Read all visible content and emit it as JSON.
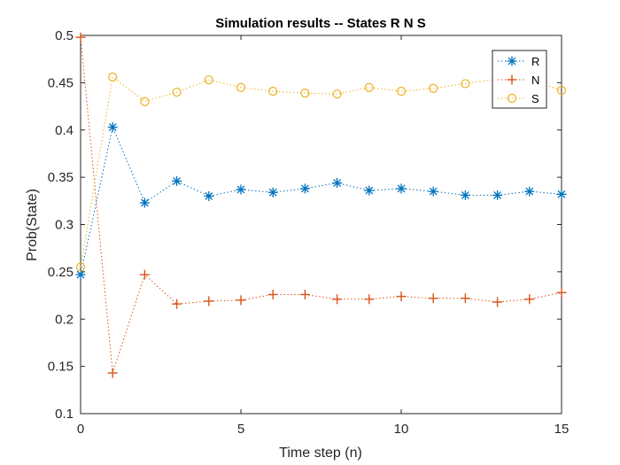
{
  "chart_data": {
    "type": "line",
    "title": "Simulation results -- States R N S",
    "xlabel": "Time step (n)",
    "ylabel": "Prob(State)",
    "xlim": [
      0,
      15
    ],
    "ylim": [
      0.1,
      0.5
    ],
    "xticks": [
      0,
      5,
      10,
      15
    ],
    "yticks": [
      0.1,
      0.15,
      0.2,
      0.25,
      0.3,
      0.35,
      0.4,
      0.45,
      0.5
    ],
    "x": [
      0,
      1,
      2,
      3,
      4,
      5,
      6,
      7,
      8,
      9,
      10,
      11,
      12,
      13,
      14,
      15
    ],
    "grid": false,
    "legend": "top-right",
    "series": [
      {
        "name": "R",
        "color": "#0072BD",
        "marker": "asterisk",
        "values": [
          0.247,
          0.403,
          0.323,
          0.346,
          0.33,
          0.337,
          0.334,
          0.338,
          0.344,
          0.336,
          0.338,
          0.335,
          0.331,
          0.331,
          0.335,
          0.332
        ]
      },
      {
        "name": "N",
        "color": "#D95319",
        "marker": "plus",
        "values": [
          0.498,
          0.143,
          0.247,
          0.216,
          0.219,
          0.22,
          0.226,
          0.226,
          0.221,
          0.221,
          0.224,
          0.222,
          0.222,
          0.218,
          0.221,
          0.228
        ]
      },
      {
        "name": "S",
        "color": "#EDB120",
        "marker": "circle",
        "values": [
          0.255,
          0.456,
          0.43,
          0.44,
          0.453,
          0.445,
          0.441,
          0.439,
          0.438,
          0.445,
          0.441,
          0.444,
          0.449,
          0.454,
          0.453,
          0.442
        ]
      }
    ]
  }
}
